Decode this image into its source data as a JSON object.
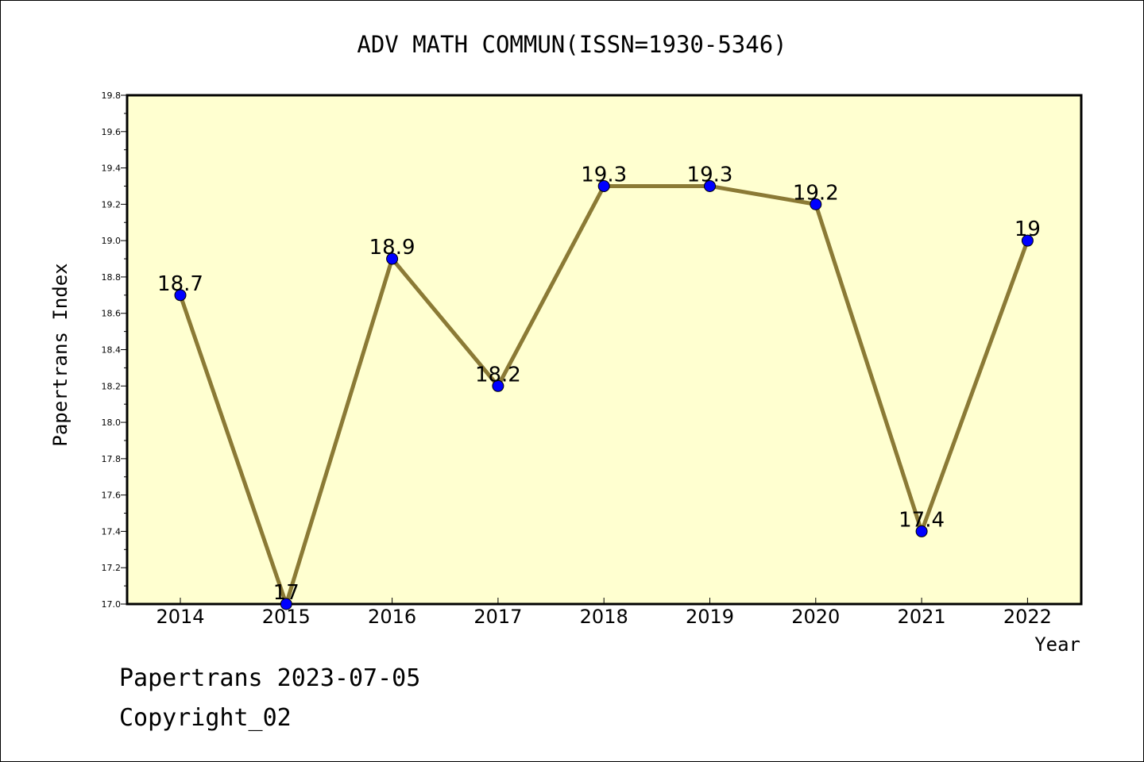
{
  "chart_data": {
    "type": "line",
    "title": "ADV MATH COMMUN(ISSN=1930-5346)",
    "xlabel": "Year",
    "ylabel": "Papertrans Index",
    "categories": [
      "2014",
      "2015",
      "2016",
      "2017",
      "2018",
      "2019",
      "2020",
      "2021",
      "2022"
    ],
    "values": [
      18.7,
      17,
      18.9,
      18.2,
      19.3,
      19.3,
      19.2,
      17.4,
      19
    ],
    "value_labels": [
      "18.7",
      "17",
      "18.9",
      "18.2",
      "19.3",
      "19.3",
      "19.2",
      "17.4",
      "19"
    ],
    "ylim": [
      17.0,
      19.8
    ],
    "yticks": [
      "17.0",
      "17.2",
      "17.4",
      "17.6",
      "17.8",
      "18.0",
      "18.2",
      "18.4",
      "18.6",
      "18.8",
      "19.0",
      "19.2",
      "19.4",
      "19.6",
      "19.8"
    ],
    "grid": false,
    "colors": {
      "plot_background": "#ffffd0",
      "line": "#8b7a35",
      "marker": "#0000ff"
    }
  },
  "footer": {
    "line1": "Papertrans 2023-07-05",
    "line2": "Copyright_02"
  }
}
